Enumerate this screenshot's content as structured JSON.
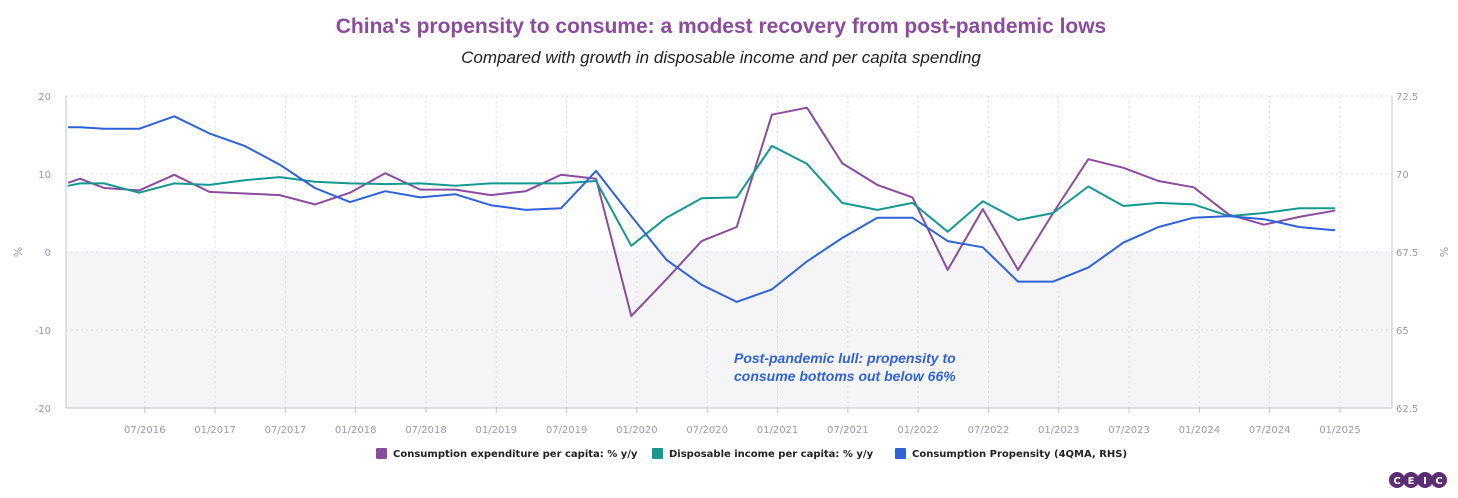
{
  "chart_data": {
    "type": "line",
    "title": "China's propensity to consume: a modest recovery from post-pandemic lows",
    "subtitle": "Compared with growth in disposable income and per capita spending",
    "ylabel_left": "%",
    "ylabel_right": "%",
    "ylim_left": [
      -20,
      20
    ],
    "ylim_right": [
      62.5,
      72.5
    ],
    "yticks_left": [
      "20",
      "10",
      "0",
      "-10",
      "-20"
    ],
    "yticks_right": [
      "72.5",
      "70",
      "67.5",
      "65",
      "62.5"
    ],
    "x_range": [
      2015.94,
      2025.37
    ],
    "xticks": [
      {
        "label": "07/2016",
        "x": 2016.5
      },
      {
        "label": "01/2017",
        "x": 2017.0
      },
      {
        "label": "07/2017",
        "x": 2017.5
      },
      {
        "label": "01/2018",
        "x": 2018.0
      },
      {
        "label": "07/2018",
        "x": 2018.5
      },
      {
        "label": "01/2019",
        "x": 2019.0
      },
      {
        "label": "07/2019",
        "x": 2019.5
      },
      {
        "label": "01/2020",
        "x": 2020.0
      },
      {
        "label": "07/2020",
        "x": 2020.5
      },
      {
        "label": "01/2021",
        "x": 2021.0
      },
      {
        "label": "07/2021",
        "x": 2021.5
      },
      {
        "label": "01/2022",
        "x": 2022.0
      },
      {
        "label": "07/2022",
        "x": 2022.5
      },
      {
        "label": "01/2023",
        "x": 2023.0
      },
      {
        "label": "07/2023",
        "x": 2023.5
      },
      {
        "label": "01/2024",
        "x": 2024.0
      },
      {
        "label": "07/2024",
        "x": 2024.5
      },
      {
        "label": "01/2025",
        "x": 2025.0
      }
    ],
    "grid": true,
    "legend_position": "bottom",
    "x": [
      2015.96,
      2016.04,
      2016.21,
      2016.46,
      2016.71,
      2016.96,
      2017.21,
      2017.46,
      2017.71,
      2017.96,
      2018.21,
      2018.46,
      2018.71,
      2018.96,
      2019.21,
      2019.46,
      2019.71,
      2019.96,
      2020.21,
      2020.46,
      2020.71,
      2020.96,
      2021.21,
      2021.46,
      2021.71,
      2021.96,
      2022.21,
      2022.46,
      2022.71,
      2022.96,
      2023.21,
      2023.46,
      2023.71,
      2023.96,
      2024.21,
      2024.46,
      2024.71,
      2024.96,
      2025.21,
      2025.37
    ],
    "series": [
      {
        "name": "Consumption expenditure per capita: % y/y",
        "color": "#8a4c9d",
        "axis": "left",
        "values": [
          8.9,
          9.4,
          8.2,
          7.9,
          9.9,
          7.7,
          7.5,
          7.3,
          6.1,
          7.6,
          10.1,
          8.0,
          8.0,
          7.3,
          7.8,
          9.9,
          9.4,
          -8.2,
          -3.5,
          1.4,
          3.2,
          17.6,
          18.5,
          11.4,
          8.6,
          7.0,
          -2.3,
          5.5,
          -2.3,
          5.0,
          11.9,
          10.8,
          9.1,
          8.3,
          4.8,
          3.5,
          4.5,
          5.3,
          null,
          null
        ]
      },
      {
        "name": "Disposable income per capita: % y/y",
        "color": "#14998f",
        "axis": "left",
        "values": [
          8.5,
          8.8,
          8.8,
          7.6,
          8.8,
          8.6,
          9.2,
          9.6,
          9.0,
          8.8,
          8.7,
          8.8,
          8.5,
          8.8,
          8.8,
          8.8,
          9.1,
          0.8,
          4.4,
          6.9,
          7.0,
          13.6,
          11.3,
          6.3,
          5.4,
          6.3,
          2.6,
          6.5,
          4.1,
          5.0,
          8.4,
          5.9,
          6.3,
          6.1,
          4.6,
          5.0,
          5.6,
          5.6,
          null,
          null
        ]
      },
      {
        "name": "Consumption Propensity (4QMA, RHS)",
        "color": "#2f62d6",
        "axis": "right",
        "values": [
          71.5,
          71.5,
          71.45,
          71.45,
          71.85,
          71.3,
          70.9,
          70.3,
          69.55,
          69.1,
          69.45,
          69.25,
          69.35,
          69.0,
          68.85,
          68.9,
          70.1,
          68.65,
          67.25,
          66.45,
          65.9,
          66.3,
          67.2,
          67.95,
          68.6,
          68.6,
          67.85,
          67.65,
          66.55,
          66.55,
          67.0,
          67.8,
          68.3,
          68.6,
          68.65,
          68.55,
          68.3,
          68.2,
          null,
          null
        ]
      }
    ],
    "annotation": {
      "lines": [
        "Post-pandemic lull: propensity to",
        "consume bottoms out below 66%"
      ],
      "color": "#2f62d6"
    }
  },
  "colors": {
    "title": "#8a4c9d",
    "negative_band": "#f5f5f8",
    "grid": "#dcdce2",
    "axis": "#c4c4cc",
    "logo_circle": "#5b2d73"
  },
  "logo": {
    "letters": [
      "C",
      "E",
      "I",
      "C"
    ]
  }
}
